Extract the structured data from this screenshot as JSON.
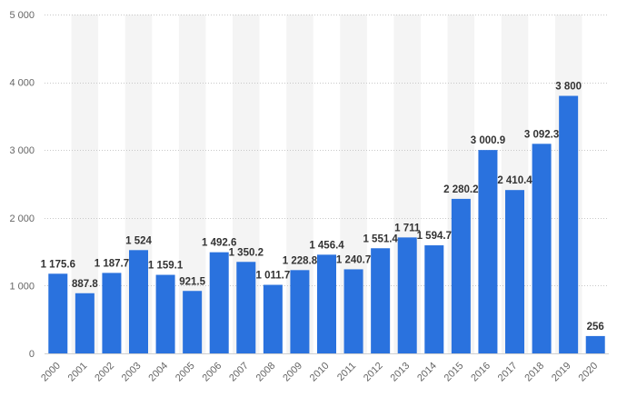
{
  "chart_data": {
    "type": "bar",
    "title": "",
    "xlabel": "",
    "ylabel": "",
    "categories": [
      "2000",
      "2001",
      "2002",
      "2003",
      "2004",
      "2005",
      "2006",
      "2007",
      "2008",
      "2009",
      "2010",
      "2011",
      "2012",
      "2013",
      "2014",
      "2015",
      "2016",
      "2017",
      "2018",
      "2019",
      "2020"
    ],
    "values": [
      1175.6,
      887.8,
      1187.7,
      1524,
      1159.1,
      921.5,
      1492.6,
      1350.2,
      1011.7,
      1228.8,
      1456.4,
      1240.7,
      1551.4,
      1711,
      1594.7,
      2280.2,
      3000.9,
      2410.4,
      3092.3,
      3800,
      256
    ],
    "value_labels": [
      "1 175.6",
      "887.8",
      "1 187.7",
      "1 524",
      "1 159.1",
      "921.5",
      "1 492.6",
      "1 350.2",
      "1 011.7",
      "1 228.8",
      "1 456.4",
      "1 240.7",
      "1 551.4",
      "1 711",
      "1 594.7",
      "2 280.2",
      "3 000.9",
      "2 410.4",
      "3 092.3",
      "3 800",
      "256"
    ],
    "yticks": [
      0,
      1000,
      2000,
      3000,
      4000,
      5000
    ],
    "ytick_labels": [
      "0",
      "1 000",
      "2 000",
      "3 000",
      "4 000",
      "5 000"
    ],
    "ylim": [
      0,
      5000
    ],
    "grid": true,
    "bar_color": "#2a72de",
    "alt_band_color": "#f4f4f4"
  }
}
